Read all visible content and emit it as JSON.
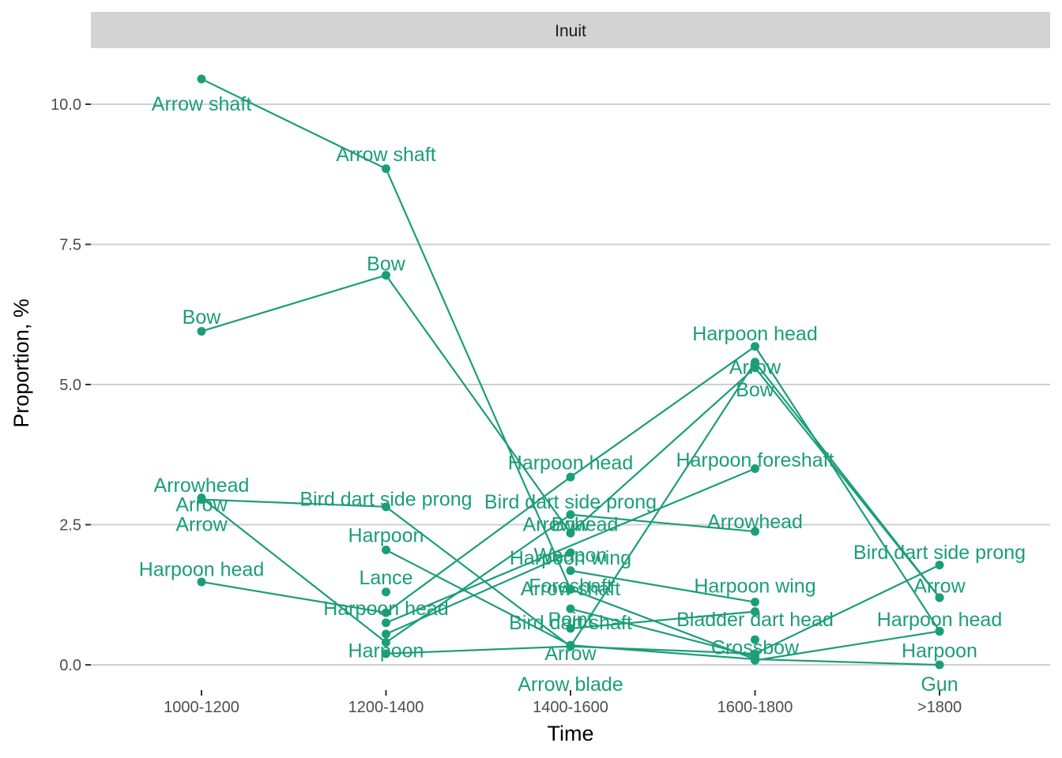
{
  "chart_data": {
    "type": "line",
    "facet_label": "Inuit",
    "xlabel": "Time",
    "ylabel": "Proportion, %",
    "categories": [
      "1000-1200",
      "1200-1400",
      "1400-1600",
      "1600-1800",
      ">1800"
    ],
    "y_ticks": [
      "0.0",
      "2.5",
      "5.0",
      "7.5",
      "10.0"
    ],
    "ylim": [
      -0.45,
      11.0
    ],
    "grid": "horizontal major",
    "legend": "none",
    "color": "#1b9e77",
    "series": [
      {
        "name": "Arrow shaft",
        "values": [
          10.45,
          8.85,
          1.35,
          0.1,
          null
        ]
      },
      {
        "name": "Bow",
        "values": [
          5.95,
          6.95,
          2.35,
          5.3,
          1.2
        ]
      },
      {
        "name": "Arrowhead",
        "values": [
          2.98,
          0.4,
          2.68,
          2.38,
          null
        ]
      },
      {
        "name": "Arrow",
        "values": [
          2.95,
          2.82,
          0.33,
          5.4,
          1.2
        ]
      },
      {
        "name": "Harpoon head",
        "values": [
          1.48,
          0.93,
          3.35,
          5.68,
          0.6
        ]
      },
      {
        "name": "Harpoon",
        "values": [
          null,
          2.05,
          0.35,
          0.1,
          0.0
        ]
      },
      {
        "name": "Lance",
        "values": [
          null,
          1.3,
          null,
          null,
          null
        ]
      },
      {
        "name": "Bird dart side prong",
        "values": [
          null,
          0.2,
          0.33,
          0.2,
          1.78
        ]
      },
      {
        "name": "Weapon",
        "values": [
          null,
          0.55,
          2.0,
          null,
          null
        ]
      },
      {
        "name": "Harpoon wing",
        "values": [
          null,
          null,
          1.68,
          1.12,
          null
        ]
      },
      {
        "name": "Foreshaft",
        "values": [
          null,
          null,
          1.35,
          null,
          null
        ]
      },
      {
        "name": "Point",
        "values": [
          null,
          null,
          1.0,
          0.15,
          null
        ]
      },
      {
        "name": "Bird dart shaft",
        "values": [
          null,
          null,
          0.65,
          0.95,
          null
        ]
      },
      {
        "name": "Arrow blade",
        "values": [
          null,
          null,
          0.33,
          null,
          null
        ]
      },
      {
        "name": "Harpoon foreshaft",
        "values": [
          null,
          0.75,
          null,
          3.5,
          null
        ]
      },
      {
        "name": "Bladder dart head",
        "values": [
          null,
          null,
          null,
          0.95,
          null
        ]
      },
      {
        "name": "Crossbow",
        "values": [
          null,
          null,
          null,
          0.45,
          null
        ]
      },
      {
        "name": "Gun",
        "values": [
          null,
          null,
          null,
          0.08,
          0.6
        ]
      }
    ],
    "labels": [
      {
        "text": "Arrow shaft",
        "x": "1000-1200",
        "y": 10.0
      },
      {
        "text": "Arrow shaft",
        "x": "1200-1400",
        "y": 9.1
      },
      {
        "text": "Bow",
        "x": "1000-1200",
        "y": 6.2
      },
      {
        "text": "Bow",
        "x": "1200-1400",
        "y": 7.15
      },
      {
        "text": "Arrowhead",
        "x": "1000-1200",
        "y": 3.2
      },
      {
        "text": "Arrow",
        "x": "1000-1200",
        "y": 2.5
      },
      {
        "text": "Harpoon head",
        "x": "1000-1200",
        "y": 1.7
      },
      {
        "text": "Arrow",
        "x": "1000-1200",
        "y": 2.85
      },
      {
        "text": "Harpoon",
        "x": "1200-1400",
        "y": 2.3
      },
      {
        "text": "Lance",
        "x": "1200-1400",
        "y": 1.55
      },
      {
        "text": "Harpoon head",
        "x": "1200-1400",
        "y": 1.0
      },
      {
        "text": "Bird dart side prong",
        "x": "1200-1400",
        "y": 2.95
      },
      {
        "text": "Harpoon",
        "x": "1200-1400",
        "y": 0.25
      },
      {
        "text": "Harpoon head",
        "x": "1400-1600",
        "y": 3.6
      },
      {
        "text": "Bird dart side prong",
        "x": "1400-1600",
        "y": 2.9
      },
      {
        "text": "Arrowhead",
        "x": "1400-1600",
        "y": 2.5
      },
      {
        "text": "Bow",
        "x": "1400-1600",
        "y": 2.5
      },
      {
        "text": "Weapon",
        "x": "1400-1600",
        "y": 1.95
      },
      {
        "text": "Harpoon wing",
        "x": "1400-1600",
        "y": 1.9
      },
      {
        "text": "Foreshaft",
        "x": "1400-1600",
        "y": 1.4
      },
      {
        "text": "Arrow shaft",
        "x": "1400-1600",
        "y": 1.35
      },
      {
        "text": "Point",
        "x": "1400-1600",
        "y": 0.8
      },
      {
        "text": "Bird dart shaft",
        "x": "1400-1600",
        "y": 0.75
      },
      {
        "text": "Arrow",
        "x": "1400-1600",
        "y": 0.2
      },
      {
        "text": "Arrow blade",
        "x": "1400-1600",
        "y": -0.35
      },
      {
        "text": "Harpoon head",
        "x": "1600-1800",
        "y": 5.9
      },
      {
        "text": "Arrow",
        "x": "1600-1800",
        "y": 5.3
      },
      {
        "text": "Bow",
        "x": "1600-1800",
        "y": 4.9
      },
      {
        "text": "Harpoon foreshaft",
        "x": "1600-1800",
        "y": 3.65
      },
      {
        "text": "Arrowhead",
        "x": "1600-1800",
        "y": 2.55
      },
      {
        "text": "Harpoon wing",
        "x": "1600-1800",
        "y": 1.4
      },
      {
        "text": "Bladder dart head",
        "x": "1600-1800",
        "y": 0.8
      },
      {
        "text": "Crossbow",
        "x": "1600-1800",
        "y": 0.3
      },
      {
        "text": "Bird dart side prong",
        "x": ">1800",
        "y": 2.0
      },
      {
        "text": "Arrow",
        "x": ">1800",
        "y": 1.4
      },
      {
        "text": "Harpoon head",
        "x": ">1800",
        "y": 0.8
      },
      {
        "text": "Harpoon",
        "x": ">1800",
        "y": 0.25
      },
      {
        "text": "Gun",
        "x": ">1800",
        "y": -0.35
      }
    ]
  }
}
